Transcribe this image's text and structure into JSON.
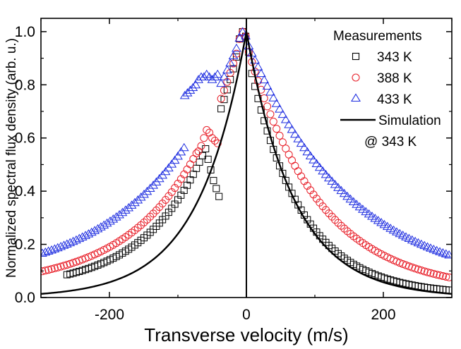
{
  "chart_data": {
    "type": "scatter",
    "xlabel": "Transverse velocity (m/s)",
    "ylabel": "Normalized spectral flux density (arb. u.)",
    "xlim": [
      -300,
      300
    ],
    "ylim": [
      0,
      1.05
    ],
    "xticks": [
      -200,
      0,
      200
    ],
    "xtick_labels": [
      "-200",
      "0",
      "200"
    ],
    "yticks": [
      0.0,
      0.2,
      0.4,
      0.6,
      0.8,
      1.0
    ],
    "ytick_labels": [
      "0.0",
      "0.2",
      "0.4",
      "0.6",
      "0.8",
      "1.0"
    ],
    "vertical_line_x": 0,
    "grid": false,
    "legend": {
      "placement": "top-right",
      "measurements_title": "Measurements",
      "simulation_label": "Simulation",
      "simulation_sublabel": "@ 343 K"
    },
    "series": [
      {
        "name": "343 K",
        "marker": "square",
        "color": "#000000",
        "gaussian_core": {
          "center": -5,
          "width": 30,
          "amplitude": 1.0
        },
        "left_wing_decay_m_s": 90,
        "right_wing_decay_m_s": 75,
        "left_tail_floor": 0.03,
        "right_tail_floor": 0.01,
        "x_range": [
          -262,
          300
        ],
        "step_m_s": 4.5,
        "left_deviation": {
          "between": [
            -56,
            -40
          ],
          "x": [
            -56,
            -52,
            -48,
            -44,
            -40
          ],
          "y": [
            0.52,
            0.48,
            0.44,
            0.41,
            0.38
          ]
        }
      },
      {
        "name": "388 K",
        "marker": "circle",
        "color": "#e8202a",
        "gaussian_core": {
          "center": -5,
          "width": 30,
          "amplitude": 1.0
        },
        "left_wing_decay_m_s": 105,
        "right_wing_decay_m_s": 105,
        "left_tail_floor": 0.04,
        "right_tail_floor": 0.02,
        "x_range": [
          -298,
          300
        ],
        "step_m_s": 4.5,
        "left_deviation": {
          "between": [
            -70,
            -40
          ],
          "x": [
            -70,
            -66,
            -62,
            -58,
            -54,
            -50,
            -46,
            -42
          ],
          "y": [
            0.55,
            0.57,
            0.6,
            0.63,
            0.62,
            0.6,
            0.59,
            0.58
          ]
        }
      },
      {
        "name": "433 K",
        "marker": "triangle",
        "color": "#1f2ee0",
        "gaussian_core": {
          "center": -5,
          "width": 32,
          "amplitude": 1.0
        },
        "left_wing_decay_m_s": 140,
        "right_wing_decay_m_s": 150,
        "left_tail_floor": 0.05,
        "right_tail_floor": 0.03,
        "x_range": [
          -298,
          300
        ],
        "step_m_s": 4.5,
        "left_deviation": {
          "between": [
            -90,
            -40
          ],
          "x": [
            -90,
            -86,
            -82,
            -78,
            -74,
            -70,
            -66,
            -62,
            -58,
            -54,
            -50,
            -46,
            -42
          ],
          "y": [
            0.76,
            0.77,
            0.78,
            0.79,
            0.8,
            0.82,
            0.83,
            0.83,
            0.84,
            0.83,
            0.82,
            0.83,
            0.84
          ]
        }
      },
      {
        "name": "Simulation @ 343 K",
        "type": "line",
        "color": "#000000",
        "decay_m_s": 70,
        "peak": 1.0,
        "x_range": [
          -300,
          300
        ]
      }
    ]
  }
}
